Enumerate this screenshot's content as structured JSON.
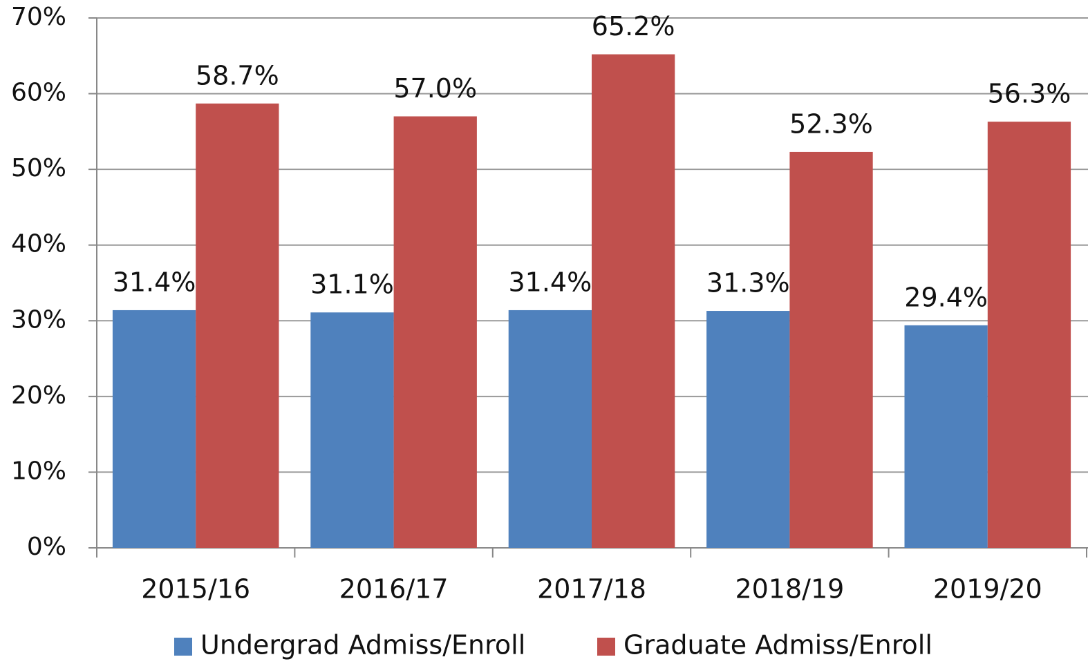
{
  "chart_data": {
    "type": "bar",
    "categories": [
      "2015/16",
      "2016/17",
      "2017/18",
      "2018/19",
      "2019/20"
    ],
    "series": [
      {
        "name": "Undergrad Admiss/Enroll",
        "color": "#4f81bd",
        "values": [
          31.4,
          31.1,
          31.4,
          31.3,
          29.4
        ],
        "value_labels": [
          "31.4%",
          "31.1%",
          "31.4%",
          "31.3%",
          "29.4%"
        ]
      },
      {
        "name": "Graduate Admiss/Enroll",
        "color": "#c0504d",
        "values": [
          58.7,
          57.0,
          65.2,
          52.3,
          56.3
        ],
        "value_labels": [
          "58.7%",
          "57.0%",
          "65.2%",
          "52.3%",
          "56.3%"
        ]
      }
    ],
    "ylim": [
      0,
      70
    ],
    "yticks": [
      {
        "value": 0,
        "label": "0%"
      },
      {
        "value": 10,
        "label": "10%"
      },
      {
        "value": 20,
        "label": "20%"
      },
      {
        "value": 30,
        "label": "30%"
      },
      {
        "value": 40,
        "label": "40%"
      },
      {
        "value": 50,
        "label": "50%"
      },
      {
        "value": 60,
        "label": "60%"
      },
      {
        "value": 70,
        "label": "70%"
      }
    ],
    "grid": true,
    "legend": "bottom"
  }
}
